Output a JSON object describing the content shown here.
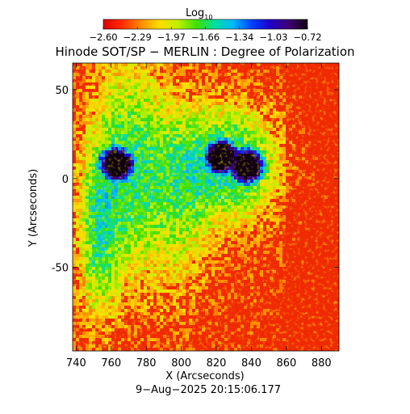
{
  "colorbar": {
    "label_main": "Log",
    "label_sub": "10",
    "ticks": [
      "−2.60",
      "−2.29",
      "−1.97",
      "−1.66",
      "−1.34",
      "−1.03",
      "−0.72"
    ],
    "range": [
      -2.6,
      -0.72
    ],
    "colormap": [
      "#e00000",
      "#ff2a00",
      "#ff8a00",
      "#ffdc00",
      "#c0f000",
      "#40e000",
      "#00e0a0",
      "#00b8ff",
      "#0040ff",
      "#2000c8",
      "#400070",
      "#100010"
    ]
  },
  "chart_data": {
    "type": "heatmap",
    "title": "Hinode SOT/SP − MERLIN : Degree of Polarization",
    "xlabel": "X (Arcseconds)",
    "ylabel": "Y (Arcseconds)",
    "xlim": [
      738,
      890
    ],
    "ylim": [
      -97,
      65
    ],
    "x_ticks": [
      740,
      760,
      780,
      800,
      820,
      840,
      860,
      880
    ],
    "y_ticks": [
      50,
      0,
      -50
    ],
    "value_range": [
      -2.6,
      -0.72
    ],
    "features": [
      {
        "kind": "spot",
        "x": 763,
        "y": 8,
        "value": -0.9
      },
      {
        "kind": "spot",
        "x": 823,
        "y": 12,
        "value": -0.85
      },
      {
        "kind": "spot",
        "x": 837,
        "y": 7,
        "value": -0.85
      }
    ]
  },
  "footer": {
    "timestamp": "9−Aug−2025 20:15:06.177"
  }
}
